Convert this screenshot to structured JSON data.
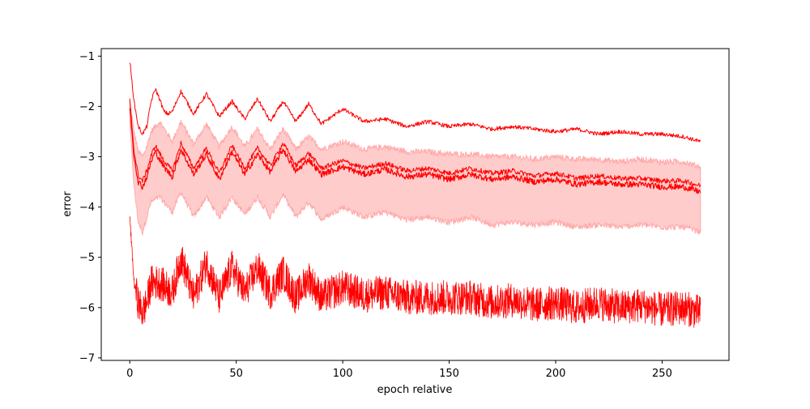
{
  "chart_data": {
    "type": "line",
    "title": "",
    "xlabel": "epoch relative",
    "ylabel": "error",
    "xlim": [
      -13.4,
      281.4
    ],
    "ylim": [
      -7.05,
      -0.85
    ],
    "x_ticks": [
      0,
      50,
      100,
      150,
      200,
      250
    ],
    "y_ticks": [
      -7,
      -6,
      -5,
      -4,
      -3,
      -2,
      -1
    ],
    "x_tick_labels": [
      "0",
      "50",
      "100",
      "150",
      "200",
      "250"
    ],
    "y_tick_labels": [
      "−7",
      "−6",
      "−5",
      "−4",
      "−3",
      "−2",
      "−1"
    ],
    "grid": false,
    "legend": "none",
    "x_max": 268,
    "colors": {
      "line": "#ff0000",
      "band_fill": "#ffcccc",
      "band_edge": "#ffaaaa"
    },
    "series": [
      {
        "role": "upper-line",
        "x": [
          0,
          2,
          4,
          6,
          8,
          10,
          12,
          14,
          16,
          18,
          20,
          24,
          30,
          36,
          42,
          48,
          54,
          60,
          66,
          72,
          78,
          84,
          90,
          100,
          110,
          120,
          130,
          140,
          150,
          160,
          170,
          180,
          190,
          200,
          210,
          220,
          230,
          240,
          250,
          260,
          268
        ],
        "y": [
          -1.1,
          -1.9,
          -2.4,
          -2.55,
          -2.4,
          -1.9,
          -1.65,
          -1.85,
          -2.1,
          -2.15,
          -2.1,
          -1.7,
          -2.15,
          -1.75,
          -2.2,
          -1.9,
          -2.25,
          -1.85,
          -2.3,
          -1.9,
          -2.3,
          -1.95,
          -2.35,
          -2.05,
          -2.3,
          -2.25,
          -2.4,
          -2.3,
          -2.4,
          -2.35,
          -2.45,
          -2.4,
          -2.45,
          -2.5,
          -2.45,
          -2.55,
          -2.5,
          -2.55,
          -2.55,
          -2.6,
          -2.7
        ]
      },
      {
        "role": "mean-line",
        "x": [
          0,
          2,
          4,
          6,
          8,
          10,
          12,
          16,
          20,
          24,
          30,
          36,
          42,
          48,
          54,
          60,
          66,
          72,
          78,
          84,
          90,
          100,
          110,
          120,
          130,
          140,
          150,
          160,
          170,
          180,
          190,
          200,
          210,
          220,
          230,
          240,
          250,
          260,
          268
        ],
        "y": [
          -2.0,
          -3.0,
          -3.5,
          -3.6,
          -3.4,
          -3.1,
          -2.9,
          -3.2,
          -3.4,
          -2.85,
          -3.35,
          -2.95,
          -3.45,
          -2.9,
          -3.35,
          -2.95,
          -3.3,
          -2.85,
          -3.3,
          -3.05,
          -3.35,
          -3.2,
          -3.35,
          -3.25,
          -3.4,
          -3.35,
          -3.45,
          -3.35,
          -3.45,
          -3.4,
          -3.5,
          -3.45,
          -3.55,
          -3.5,
          -3.55,
          -3.55,
          -3.6,
          -3.6,
          -3.7
        ]
      },
      {
        "role": "band",
        "x": [
          0,
          2,
          4,
          6,
          8,
          10,
          14,
          20,
          24,
          30,
          36,
          42,
          48,
          54,
          60,
          66,
          72,
          78,
          84,
          90,
          100,
          110,
          120,
          130,
          140,
          150,
          160,
          170,
          180,
          190,
          200,
          210,
          220,
          230,
          240,
          250,
          260,
          268
        ],
        "y_low": [
          -2.3,
          -3.6,
          -4.3,
          -4.5,
          -4.2,
          -3.9,
          -3.8,
          -4.1,
          -3.7,
          -4.2,
          -3.8,
          -4.2,
          -3.8,
          -4.15,
          -3.8,
          -4.2,
          -3.75,
          -4.2,
          -3.9,
          -4.25,
          -4.0,
          -4.2,
          -4.1,
          -4.25,
          -4.2,
          -4.3,
          -4.2,
          -4.35,
          -4.3,
          -4.35,
          -4.3,
          -4.4,
          -4.35,
          -4.4,
          -4.35,
          -4.4,
          -4.4,
          -4.5
        ],
        "y_high": [
          -1.9,
          -2.5,
          -2.9,
          -3.0,
          -2.8,
          -2.5,
          -2.3,
          -2.7,
          -2.3,
          -2.75,
          -2.35,
          -2.8,
          -2.4,
          -2.8,
          -2.45,
          -2.85,
          -2.45,
          -2.85,
          -2.6,
          -2.85,
          -2.7,
          -2.85,
          -2.8,
          -2.9,
          -2.9,
          -2.95,
          -2.95,
          -3.0,
          -3.0,
          -3.05,
          -3.0,
          -3.05,
          -3.05,
          -3.1,
          -3.05,
          -3.1,
          -3.1,
          -3.2
        ]
      },
      {
        "role": "lower-noisy-line",
        "x": [
          0,
          2,
          4,
          6,
          8,
          10,
          14,
          20,
          24,
          30,
          36,
          42,
          48,
          54,
          60,
          66,
          72,
          78,
          84,
          90,
          100,
          110,
          120,
          130,
          140,
          150,
          160,
          170,
          180,
          190,
          200,
          210,
          220,
          230,
          240,
          250,
          260,
          268
        ],
        "y": [
          -4.2,
          -5.5,
          -5.9,
          -6.1,
          -5.9,
          -5.5,
          -5.5,
          -5.7,
          -5.0,
          -5.8,
          -5.1,
          -5.8,
          -5.2,
          -5.7,
          -5.2,
          -5.7,
          -5.3,
          -5.8,
          -5.4,
          -5.8,
          -5.6,
          -5.75,
          -5.7,
          -5.8,
          -5.8,
          -5.8,
          -5.8,
          -5.9,
          -5.85,
          -5.95,
          -5.9,
          -6.0,
          -5.9,
          -6.0,
          -5.95,
          -6.05,
          -6.0,
          -6.1
        ],
        "spread": 0.35
      }
    ]
  }
}
